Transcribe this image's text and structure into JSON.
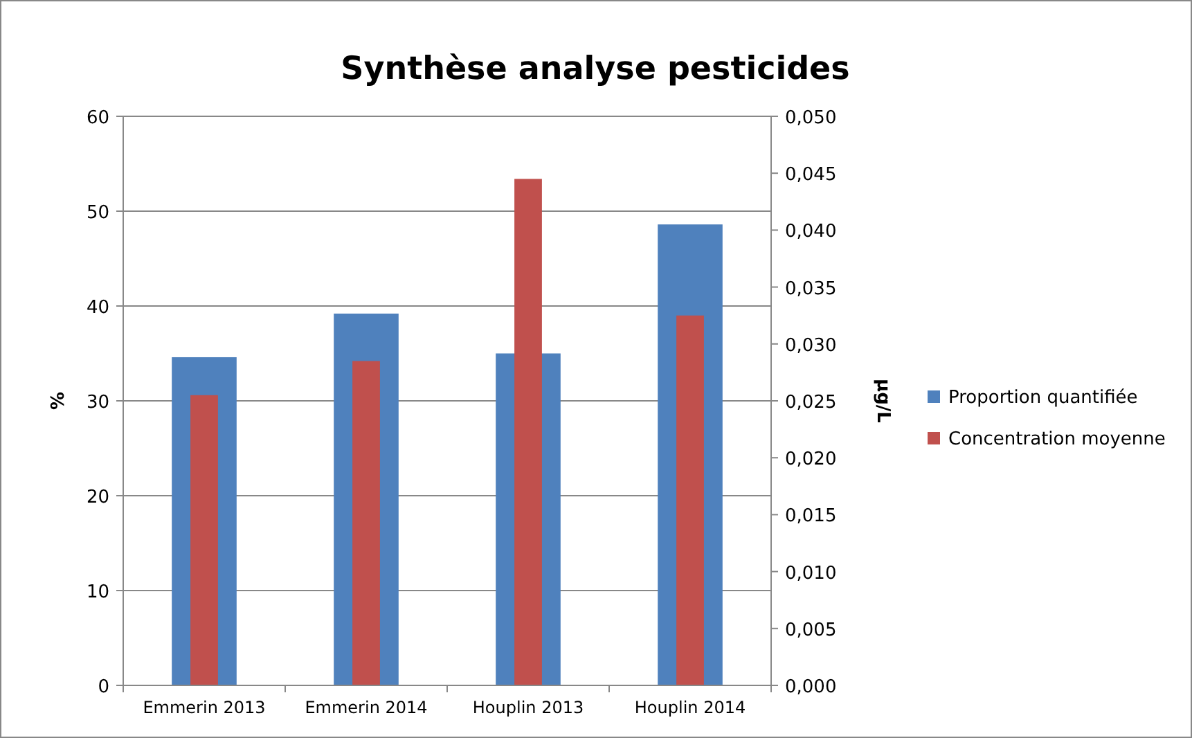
{
  "chart_data": {
    "type": "bar",
    "title": "Synthèse analyse pesticides",
    "ylabel": "%",
    "y2label": "µg/L",
    "categories": [
      "Emmerin 2013",
      "Emmerin 2014",
      "Houplin 2013",
      "Houplin 2014"
    ],
    "series": [
      {
        "name": "Proportion quantifiée",
        "color": "#4f81bd",
        "values": [
          34.6,
          39.2,
          35.0,
          48.6
        ]
      },
      {
        "name": "Concentration moyenne",
        "color": "#c0504d",
        "values": [
          0.0255,
          0.0285,
          0.0445,
          0.0325
        ],
        "axis": "y2"
      }
    ],
    "ylim": [
      0,
      60
    ],
    "yticks": [
      0,
      10,
      20,
      30,
      40,
      50,
      60
    ],
    "y2lim": [
      0,
      0.05
    ],
    "y2ticks": [
      {
        "value": 0,
        "label": "0,000"
      },
      {
        "value": 0.005,
        "label": "0,005"
      },
      {
        "value": 0.01,
        "label": "0,010"
      },
      {
        "value": 0.015,
        "label": "0,015"
      },
      {
        "value": 0.02,
        "label": "0,020"
      },
      {
        "value": 0.025,
        "label": "0,025"
      },
      {
        "value": 0.03,
        "label": "0,030"
      },
      {
        "value": 0.035,
        "label": "0,035"
      },
      {
        "value": 0.04,
        "label": "0,040"
      },
      {
        "value": 0.045,
        "label": "0,045"
      },
      {
        "value": 0.05,
        "label": "0,050"
      }
    ],
    "grid": "y",
    "legend": "right"
  }
}
